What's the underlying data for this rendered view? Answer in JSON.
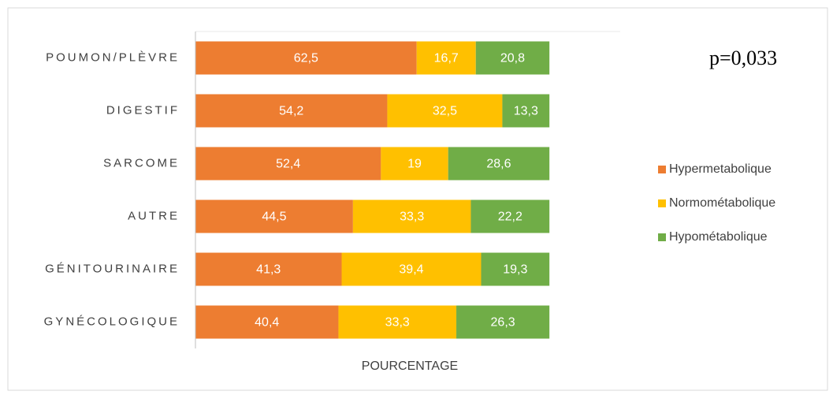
{
  "chart_data": {
    "type": "stacked-bar-horizontal",
    "categories": [
      "POUMON/PLÈVRE",
      "DIGESTIF",
      "SARCOME",
      "AUTRE",
      "GÉNITOURINAIRE",
      "GYNÉCOLOGIQUE"
    ],
    "series": [
      {
        "name": "Hypermetabolique",
        "color": "#ED7D31",
        "values": [
          62.5,
          54.2,
          52.4,
          44.5,
          41.3,
          40.4
        ],
        "value_labels": [
          "62,5",
          "54,2",
          "52,4",
          "44,5",
          "41,3",
          "40,4"
        ]
      },
      {
        "name": "Normométabolique",
        "color": "#FFC000",
        "values": [
          16.7,
          32.5,
          19,
          33.3,
          39.4,
          33.3
        ],
        "value_labels": [
          "16,7",
          "32,5",
          "19",
          "33,3",
          "39,4",
          "33,3"
        ]
      },
      {
        "name": "Hypométabolique",
        "color": "#70AD47",
        "values": [
          20.8,
          13.3,
          28.6,
          22.2,
          19.3,
          26.3
        ],
        "value_labels": [
          "20,8",
          "13,3",
          "28,6",
          "22,2",
          "19,3",
          "26,3"
        ]
      }
    ],
    "xlabel": "POURCENTAGE",
    "xlim": [
      0,
      120
    ],
    "annotation": "p=0,033",
    "legend": "right"
  }
}
